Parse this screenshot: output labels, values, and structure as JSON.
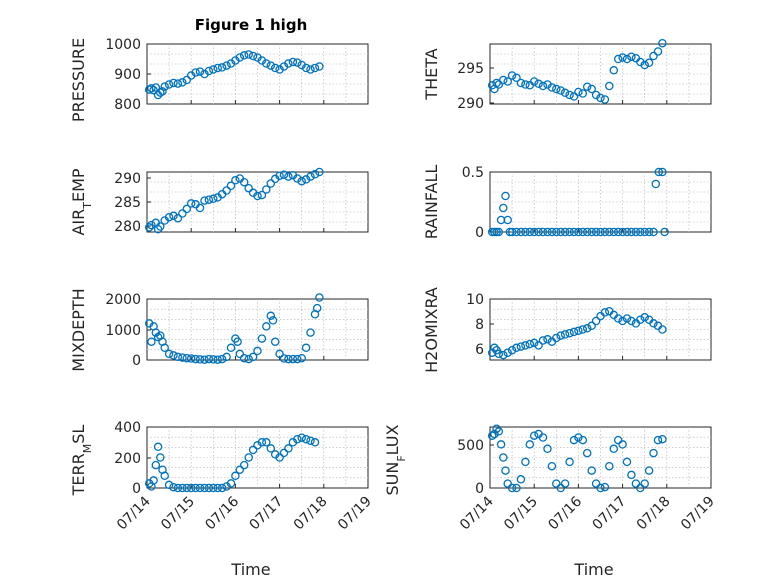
{
  "figure_title": "Figure 1 high",
  "colors": {
    "marker": "#0072BD",
    "axes": "#262626",
    "grid": "#b0b0b0"
  },
  "x_ticks": [
    "07/14",
    "07/15",
    "07/16",
    "07/17",
    "07/18",
    "07/19"
  ],
  "x_label": "Time",
  "chart_data": [
    {
      "type": "scatter",
      "ylabel": "PRESSURE",
      "ylim": [
        800,
        1000
      ],
      "yticks": [
        "800",
        "900",
        "1000"
      ],
      "xlim": [
        0,
        5
      ],
      "grid": true,
      "points": [
        [
          0.05,
          848
        ],
        [
          0.1,
          852
        ],
        [
          0.15,
          846
        ],
        [
          0.2,
          855
        ],
        [
          0.25,
          830
        ],
        [
          0.3,
          838
        ],
        [
          0.35,
          842
        ],
        [
          0.4,
          858
        ],
        [
          0.5,
          865
        ],
        [
          0.6,
          870
        ],
        [
          0.7,
          868
        ],
        [
          0.8,
          872
        ],
        [
          0.9,
          880
        ],
        [
          1.0,
          895
        ],
        [
          1.1,
          905
        ],
        [
          1.2,
          908
        ],
        [
          1.3,
          900
        ],
        [
          1.4,
          910
        ],
        [
          1.5,
          915
        ],
        [
          1.6,
          920
        ],
        [
          1.7,
          922
        ],
        [
          1.8,
          928
        ],
        [
          1.9,
          935
        ],
        [
          2.0,
          945
        ],
        [
          2.1,
          955
        ],
        [
          2.2,
          962
        ],
        [
          2.3,
          965
        ],
        [
          2.4,
          960
        ],
        [
          2.5,
          955
        ],
        [
          2.6,
          945
        ],
        [
          2.7,
          935
        ],
        [
          2.8,
          928
        ],
        [
          2.9,
          920
        ],
        [
          3.0,
          915
        ],
        [
          3.1,
          925
        ],
        [
          3.2,
          935
        ],
        [
          3.3,
          940
        ],
        [
          3.4,
          938
        ],
        [
          3.5,
          930
        ],
        [
          3.6,
          920
        ],
        [
          3.7,
          915
        ],
        [
          3.8,
          920
        ],
        [
          3.9,
          925
        ]
      ]
    },
    {
      "type": "scatter",
      "ylabel": "THETA",
      "ylim": [
        290,
        298
      ],
      "yticks": [
        "290",
        "295"
      ],
      "xlim": [
        0,
        5
      ],
      "grid": true,
      "points": [
        [
          0.05,
          292.5
        ],
        [
          0.1,
          292.0
        ],
        [
          0.15,
          292.8
        ],
        [
          0.2,
          292.6
        ],
        [
          0.3,
          293.2
        ],
        [
          0.4,
          293.0
        ],
        [
          0.5,
          293.8
        ],
        [
          0.6,
          293.5
        ],
        [
          0.7,
          292.8
        ],
        [
          0.8,
          292.6
        ],
        [
          0.9,
          292.5
        ],
        [
          1.0,
          293.0
        ],
        [
          1.1,
          292.7
        ],
        [
          1.2,
          292.4
        ],
        [
          1.3,
          292.6
        ],
        [
          1.4,
          292.2
        ],
        [
          1.5,
          292.0
        ],
        [
          1.6,
          291.8
        ],
        [
          1.7,
          291.5
        ],
        [
          1.8,
          291.2
        ],
        [
          1.9,
          291.0
        ],
        [
          2.0,
          291.6
        ],
        [
          2.1,
          291.4
        ],
        [
          2.2,
          292.3
        ],
        [
          2.3,
          292.0
        ],
        [
          2.4,
          291.2
        ],
        [
          2.5,
          290.8
        ],
        [
          2.6,
          290.6
        ],
        [
          2.7,
          292.4
        ],
        [
          2.8,
          294.5
        ],
        [
          2.9,
          296.0
        ],
        [
          3.0,
          296.2
        ],
        [
          3.1,
          296.0
        ],
        [
          3.2,
          296.3
        ],
        [
          3.3,
          296.1
        ],
        [
          3.4,
          295.6
        ],
        [
          3.5,
          295.2
        ],
        [
          3.6,
          295.5
        ],
        [
          3.7,
          296.4
        ],
        [
          3.8,
          297.0
        ],
        [
          3.9,
          298.1
        ]
      ]
    },
    {
      "type": "scatter",
      "ylabel": "AIR_TEMP",
      "ylim": [
        278,
        291
      ],
      "yticks": [
        "280",
        "285",
        "290"
      ],
      "xlim": [
        0,
        5
      ],
      "grid": true,
      "points": [
        [
          0.05,
          279.0
        ],
        [
          0.1,
          279.5
        ],
        [
          0.2,
          280.0
        ],
        [
          0.25,
          278.6
        ],
        [
          0.3,
          279.2
        ],
        [
          0.4,
          280.5
        ],
        [
          0.5,
          281.2
        ],
        [
          0.6,
          281.5
        ],
        [
          0.7,
          281.0
        ],
        [
          0.8,
          282.0
        ],
        [
          0.9,
          283.0
        ],
        [
          1.0,
          284.2
        ],
        [
          1.1,
          284.0
        ],
        [
          1.2,
          283.2
        ],
        [
          1.3,
          284.8
        ],
        [
          1.4,
          285.0
        ],
        [
          1.5,
          285.2
        ],
        [
          1.6,
          285.5
        ],
        [
          1.7,
          286.2
        ],
        [
          1.8,
          287.0
        ],
        [
          1.9,
          288.0
        ],
        [
          2.0,
          289.2
        ],
        [
          2.1,
          289.6
        ],
        [
          2.2,
          288.8
        ],
        [
          2.3,
          287.5
        ],
        [
          2.4,
          286.5
        ],
        [
          2.5,
          285.8
        ],
        [
          2.6,
          286.0
        ],
        [
          2.7,
          287.2
        ],
        [
          2.8,
          288.5
        ],
        [
          2.9,
          289.5
        ],
        [
          3.0,
          290.2
        ],
        [
          3.1,
          290.4
        ],
        [
          3.2,
          290.0
        ],
        [
          3.3,
          290.3
        ],
        [
          3.4,
          289.6
        ],
        [
          3.5,
          289.0
        ],
        [
          3.6,
          289.4
        ],
        [
          3.7,
          290.0
        ],
        [
          3.8,
          290.5
        ],
        [
          3.9,
          291.0
        ]
      ]
    },
    {
      "type": "scatter",
      "ylabel": "RAINFALL",
      "ylim": [
        0,
        0.5
      ],
      "yticks": [
        "0",
        "0.5"
      ],
      "xlim": [
        0,
        5
      ],
      "grid": true,
      "points": [
        [
          0.05,
          0
        ],
        [
          0.1,
          0
        ],
        [
          0.15,
          0
        ],
        [
          0.2,
          0
        ],
        [
          0.25,
          0.1
        ],
        [
          0.3,
          0.2
        ],
        [
          0.35,
          0.3
        ],
        [
          0.4,
          0.1
        ],
        [
          0.45,
          0
        ],
        [
          0.5,
          0
        ],
        [
          0.6,
          0
        ],
        [
          0.7,
          0
        ],
        [
          0.8,
          0
        ],
        [
          0.9,
          0
        ],
        [
          1.0,
          0
        ],
        [
          1.1,
          0
        ],
        [
          1.2,
          0
        ],
        [
          1.3,
          0
        ],
        [
          1.4,
          0
        ],
        [
          1.5,
          0
        ],
        [
          1.6,
          0
        ],
        [
          1.7,
          0
        ],
        [
          1.8,
          0
        ],
        [
          1.9,
          0
        ],
        [
          2.0,
          0
        ],
        [
          2.1,
          0
        ],
        [
          2.2,
          0
        ],
        [
          2.3,
          0
        ],
        [
          2.4,
          0
        ],
        [
          2.5,
          0
        ],
        [
          2.6,
          0
        ],
        [
          2.7,
          0
        ],
        [
          2.8,
          0
        ],
        [
          2.9,
          0
        ],
        [
          3.0,
          0
        ],
        [
          3.1,
          0
        ],
        [
          3.2,
          0
        ],
        [
          3.3,
          0
        ],
        [
          3.4,
          0
        ],
        [
          3.5,
          0
        ],
        [
          3.6,
          0
        ],
        [
          3.7,
          0
        ],
        [
          3.75,
          0.4
        ],
        [
          3.82,
          0.5
        ],
        [
          3.9,
          0.5
        ],
        [
          3.95,
          0
        ]
      ]
    },
    {
      "type": "scatter",
      "ylabel": "MIXDEPTH",
      "ylim": [
        0,
        2000
      ],
      "yticks": [
        "0",
        "1000",
        "2000"
      ],
      "xlim": [
        0,
        5
      ],
      "grid": true,
      "points": [
        [
          0.05,
          1200
        ],
        [
          0.1,
          600
        ],
        [
          0.15,
          1100
        ],
        [
          0.2,
          900
        ],
        [
          0.25,
          750
        ],
        [
          0.3,
          800
        ],
        [
          0.35,
          600
        ],
        [
          0.4,
          400
        ],
        [
          0.5,
          200
        ],
        [
          0.6,
          150
        ],
        [
          0.7,
          100
        ],
        [
          0.8,
          80
        ],
        [
          0.9,
          60
        ],
        [
          1.0,
          50
        ],
        [
          1.1,
          30
        ],
        [
          1.2,
          20
        ],
        [
          1.3,
          10
        ],
        [
          1.4,
          30
        ],
        [
          1.5,
          20
        ],
        [
          1.6,
          10
        ],
        [
          1.7,
          30
        ],
        [
          1.8,
          100
        ],
        [
          1.9,
          400
        ],
        [
          2.0,
          700
        ],
        [
          2.05,
          600
        ],
        [
          2.1,
          200
        ],
        [
          2.2,
          60
        ],
        [
          2.3,
          30
        ],
        [
          2.4,
          100
        ],
        [
          2.5,
          300
        ],
        [
          2.6,
          700
        ],
        [
          2.7,
          1100
        ],
        [
          2.8,
          1450
        ],
        [
          2.85,
          1300
        ],
        [
          2.9,
          600
        ],
        [
          3.0,
          200
        ],
        [
          3.1,
          50
        ],
        [
          3.2,
          30
        ],
        [
          3.3,
          30
        ],
        [
          3.4,
          30
        ],
        [
          3.5,
          60
        ],
        [
          3.6,
          400
        ],
        [
          3.7,
          900
        ],
        [
          3.8,
          1500
        ],
        [
          3.85,
          1700
        ],
        [
          3.9,
          2050
        ]
      ]
    },
    {
      "type": "scatter",
      "ylabel": "H2OMIXRA",
      "ylim": [
        5,
        10
      ],
      "yticks": [
        "6",
        "8",
        "10"
      ],
      "xlim": [
        0,
        5
      ],
      "grid": true,
      "points": [
        [
          0.05,
          5.6
        ],
        [
          0.1,
          6.0
        ],
        [
          0.15,
          5.8
        ],
        [
          0.2,
          5.5
        ],
        [
          0.3,
          5.4
        ],
        [
          0.4,
          5.6
        ],
        [
          0.5,
          5.8
        ],
        [
          0.6,
          6.0
        ],
        [
          0.7,
          6.1
        ],
        [
          0.8,
          6.2
        ],
        [
          0.9,
          6.3
        ],
        [
          1.0,
          6.4
        ],
        [
          1.1,
          6.2
        ],
        [
          1.2,
          6.6
        ],
        [
          1.3,
          6.7
        ],
        [
          1.4,
          6.5
        ],
        [
          1.5,
          6.8
        ],
        [
          1.6,
          7.0
        ],
        [
          1.7,
          7.1
        ],
        [
          1.8,
          7.2
        ],
        [
          1.9,
          7.3
        ],
        [
          2.0,
          7.4
        ],
        [
          2.1,
          7.5
        ],
        [
          2.2,
          7.6
        ],
        [
          2.3,
          7.8
        ],
        [
          2.4,
          8.2
        ],
        [
          2.5,
          8.6
        ],
        [
          2.6,
          8.9
        ],
        [
          2.7,
          9.0
        ],
        [
          2.8,
          8.7
        ],
        [
          2.9,
          8.4
        ],
        [
          3.0,
          8.2
        ],
        [
          3.1,
          8.4
        ],
        [
          3.2,
          8.2
        ],
        [
          3.3,
          8.0
        ],
        [
          3.4,
          8.3
        ],
        [
          3.5,
          8.5
        ],
        [
          3.6,
          8.3
        ],
        [
          3.7,
          8.0
        ],
        [
          3.8,
          7.8
        ],
        [
          3.9,
          7.5
        ]
      ]
    },
    {
      "type": "scatter",
      "ylabel": "TERR_MSL",
      "ylim": [
        0,
        400
      ],
      "yticks": [
        "0",
        "200",
        "400"
      ],
      "xlim": [
        0,
        5
      ],
      "grid": true,
      "points": [
        [
          0.05,
          30
        ],
        [
          0.1,
          10
        ],
        [
          0.15,
          50
        ],
        [
          0.2,
          150
        ],
        [
          0.25,
          270
        ],
        [
          0.3,
          200
        ],
        [
          0.35,
          120
        ],
        [
          0.4,
          80
        ],
        [
          0.5,
          20
        ],
        [
          0.6,
          5
        ],
        [
          0.7,
          0
        ],
        [
          0.8,
          0
        ],
        [
          0.9,
          0
        ],
        [
          1.0,
          0
        ],
        [
          1.1,
          0
        ],
        [
          1.2,
          0
        ],
        [
          1.3,
          0
        ],
        [
          1.4,
          0
        ],
        [
          1.5,
          0
        ],
        [
          1.6,
          0
        ],
        [
          1.7,
          0
        ],
        [
          1.8,
          10
        ],
        [
          1.9,
          30
        ],
        [
          2.0,
          80
        ],
        [
          2.1,
          120
        ],
        [
          2.2,
          150
        ],
        [
          2.3,
          200
        ],
        [
          2.4,
          250
        ],
        [
          2.5,
          280
        ],
        [
          2.6,
          300
        ],
        [
          2.7,
          300
        ],
        [
          2.8,
          260
        ],
        [
          2.9,
          220
        ],
        [
          3.0,
          200
        ],
        [
          3.1,
          230
        ],
        [
          3.2,
          260
        ],
        [
          3.3,
          300
        ],
        [
          3.4,
          320
        ],
        [
          3.5,
          330
        ],
        [
          3.6,
          320
        ],
        [
          3.7,
          310
        ],
        [
          3.8,
          300
        ]
      ]
    },
    {
      "type": "scatter",
      "ylabel": "SUN_FLUX",
      "ylim": [
        0,
        700
      ],
      "yticks": [
        "0",
        "500"
      ],
      "xlim": [
        0,
        5
      ],
      "grid": true,
      "points": [
        [
          0.05,
          600
        ],
        [
          0.1,
          620
        ],
        [
          0.15,
          680
        ],
        [
          0.2,
          650
        ],
        [
          0.25,
          500
        ],
        [
          0.3,
          350
        ],
        [
          0.35,
          200
        ],
        [
          0.4,
          50
        ],
        [
          0.5,
          0
        ],
        [
          0.6,
          0
        ],
        [
          0.7,
          100
        ],
        [
          0.8,
          300
        ],
        [
          0.9,
          500
        ],
        [
          1.0,
          600
        ],
        [
          1.1,
          620
        ],
        [
          1.2,
          580
        ],
        [
          1.3,
          450
        ],
        [
          1.4,
          250
        ],
        [
          1.5,
          50
        ],
        [
          1.6,
          0
        ],
        [
          1.7,
          50
        ],
        [
          1.8,
          300
        ],
        [
          1.9,
          550
        ],
        [
          2.0,
          580
        ],
        [
          2.1,
          550
        ],
        [
          2.2,
          400
        ],
        [
          2.3,
          200
        ],
        [
          2.4,
          50
        ],
        [
          2.5,
          0
        ],
        [
          2.6,
          10
        ],
        [
          2.7,
          250
        ],
        [
          2.8,
          450
        ],
        [
          2.9,
          550
        ],
        [
          3.0,
          500
        ],
        [
          3.1,
          300
        ],
        [
          3.2,
          150
        ],
        [
          3.3,
          50
        ],
        [
          3.4,
          0
        ],
        [
          3.5,
          50
        ],
        [
          3.6,
          200
        ],
        [
          3.7,
          400
        ],
        [
          3.8,
          550
        ],
        [
          3.9,
          560
        ]
      ]
    }
  ]
}
